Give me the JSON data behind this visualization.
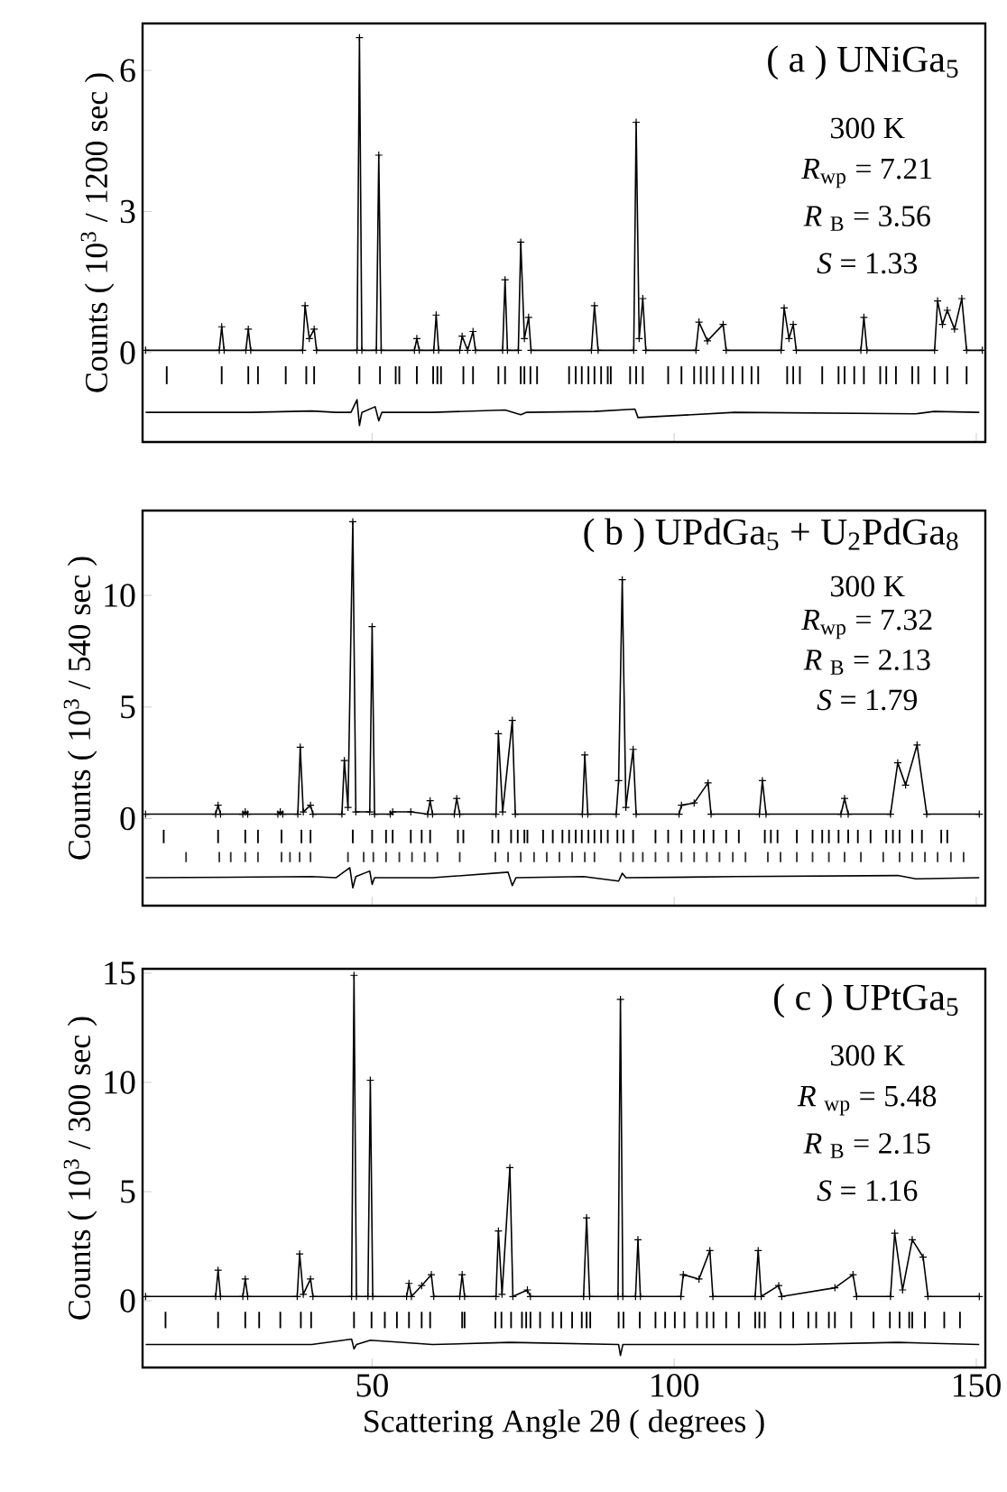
{
  "chart_data": [
    {
      "type": "line",
      "xlim": [
        12,
        151.5
      ],
      "xticks": [
        50,
        100,
        150
      ],
      "ylim": [
        -1.9,
        7
      ],
      "yticks": [
        0,
        3,
        6
      ],
      "tick_labels": "y",
      "ylabel": "Counts ( 10$^{3}$ / 1200 sec )",
      "annotations": [
        "( a )  UNiGa$_{5}$",
        "300 K",
        "*R*$_{wp}$ = 7.21",
        "*R* $_{B}$ = 3.56",
        "*S*  = 1.33"
      ],
      "series": [
        {
          "marker": "cross",
          "color": "#000000",
          "x": [
            12.5,
            24.7,
            25.1,
            25.5,
            29.1,
            29.5,
            29.9,
            38.5,
            38.9,
            39.6,
            40.4,
            40.8,
            47.5,
            47.9,
            48.3,
            50.7,
            51.1,
            51.5,
            57.0,
            57.4,
            57.8,
            60.2,
            60.6,
            61.0,
            64.5,
            64.9,
            65.8,
            66.7,
            67.1,
            71.6,
            72.0,
            72.4,
            74.2,
            74.6,
            75.2,
            75.9,
            76.3,
            86.3,
            86.8,
            87.4,
            93.3,
            93.7,
            94.2,
            94.8,
            95.3,
            103.6,
            104.1,
            105.5,
            108.1,
            108.6,
            117.7,
            118.2,
            119.0,
            119.7,
            120.2,
            130.9,
            131.4,
            131.9,
            143.1,
            143.6,
            144.4,
            145.2,
            146.4,
            147.6,
            148.4,
            151
          ],
          "values": [
            0.05,
            0.05,
            0.55,
            0.05,
            0.05,
            0.5,
            0.05,
            0.05,
            1.0,
            0.3,
            0.5,
            0.05,
            0.05,
            6.7,
            0.05,
            0.05,
            4.2,
            0.05,
            0.05,
            0.3,
            0.05,
            0.05,
            0.8,
            0.05,
            0.05,
            0.35,
            0.05,
            0.45,
            0.05,
            0.05,
            1.55,
            0.05,
            0.05,
            2.35,
            0.3,
            0.75,
            0.05,
            0.05,
            1.0,
            0.05,
            0.05,
            4.9,
            0.3,
            1.15,
            0.05,
            0.05,
            0.65,
            0.25,
            0.6,
            0.05,
            0.05,
            0.95,
            0.3,
            0.6,
            0.05,
            0.05,
            0.75,
            0.05,
            0.05,
            1.1,
            0.6,
            0.9,
            0.5,
            1.15,
            0.05,
            0.05
          ]
        },
        {
          "type": "bar",
          "color": "#000000",
          "x": [
            16.0,
            25.1,
            29.5,
            31.1,
            35.7,
            39.1,
            40.4,
            47.9,
            51.3,
            53.9,
            54.5,
            57.4,
            60.1,
            60.8,
            61.4,
            65.1,
            66.7,
            70.9,
            72.0,
            74.6,
            75.2,
            76.2,
            77.3,
            82.6,
            83.7,
            84.7,
            85.8,
            86.8,
            87.9,
            89.0,
            89.5,
            92.7,
            93.7,
            94.8,
            99.0,
            101.2,
            103.3,
            104.4,
            105.4,
            106.5,
            108.1,
            109.7,
            111.3,
            112.8,
            113.9,
            118.7,
            119.7,
            120.8,
            124.5,
            127.2,
            128.2,
            129.8,
            131.4,
            134.1,
            135.1,
            136.7,
            139.4,
            140.4,
            143.1,
            145.2,
            148.4
          ],
          "base": [
            -0.67,
            -0.67,
            -0.67,
            -0.67,
            -0.67,
            -0.67,
            -0.67,
            -0.67,
            -0.67,
            -0.67,
            -0.67,
            -0.67,
            -0.67,
            -0.67,
            -0.67,
            -0.67,
            -0.67,
            -0.67,
            -0.67,
            -0.67,
            -0.67,
            -0.67,
            -0.67,
            -0.67,
            -0.67,
            -0.67,
            -0.67,
            -0.67,
            -0.67,
            -0.67,
            -0.67,
            -0.67,
            -0.67,
            -0.67,
            -0.67,
            -0.67,
            -0.67,
            -0.67,
            -0.67,
            -0.67,
            -0.67,
            -0.67,
            -0.67,
            -0.67,
            -0.67,
            -0.67,
            -0.67,
            -0.67,
            -0.67,
            -0.67,
            -0.67,
            -0.67,
            -0.67,
            -0.67,
            -0.67,
            -0.67,
            -0.67,
            -0.67,
            -0.67,
            -0.67,
            -0.67
          ],
          "values": [
            0.38,
            0.38,
            0.38,
            0.38,
            0.38,
            0.38,
            0.38,
            0.38,
            0.38,
            0.38,
            0.38,
            0.38,
            0.38,
            0.38,
            0.38,
            0.38,
            0.38,
            0.38,
            0.38,
            0.38,
            0.38,
            0.38,
            0.38,
            0.38,
            0.38,
            0.38,
            0.38,
            0.38,
            0.38,
            0.38,
            0.38,
            0.38,
            0.38,
            0.38,
            0.38,
            0.38,
            0.38,
            0.38,
            0.38,
            0.38,
            0.38,
            0.38,
            0.38,
            0.38,
            0.38,
            0.38,
            0.38,
            0.38,
            0.38,
            0.38,
            0.38,
            0.38,
            0.38,
            0.38,
            0.38,
            0.38,
            0.38,
            0.38,
            0.38,
            0.38,
            0.38
          ]
        },
        {
          "marker": "none",
          "color": "#000000",
          "x": [
            12.5,
            30,
            40,
            44,
            46.5,
            47.5,
            47.9,
            48.3,
            50.5,
            51.1,
            51.6,
            60,
            72,
            74.6,
            75.5,
            86.8,
            93.5,
            94,
            110,
            140,
            143,
            150.5
          ],
          "values": [
            -1.27,
            -1.27,
            -1.24,
            -1.27,
            -1.27,
            -1.0,
            -1.55,
            -1.27,
            -1.15,
            -1.45,
            -1.27,
            -1.27,
            -1.22,
            -1.32,
            -1.27,
            -1.25,
            -1.2,
            -1.38,
            -1.27,
            -1.3,
            -1.25,
            -1.27
          ]
        }
      ]
    },
    {
      "type": "line",
      "xlim": [
        12,
        151.5
      ],
      "xticks": [
        50,
        100,
        150
      ],
      "ylim": [
        -3.9,
        13.8
      ],
      "yticks": [
        0,
        5,
        10
      ],
      "tick_labels": "y",
      "ylabel": "Counts  ( 10$^{3}$ / 540 sec )",
      "annotations": [
        "( b ) UPdGa$_{5}$ + U$_{2}$PdGa$_{8}$",
        "300 K",
        "*R*$_{wp}$ = 7.32",
        "*R* $_{B}$ = 2.13",
        "*S*  = 1.79"
      ],
      "series": [
        {
          "marker": "cross",
          "color": "#000000",
          "x": [
            12.5,
            24.1,
            24.5,
            24.9,
            28.6,
            29.0,
            29.4,
            34.4,
            34.8,
            35.2,
            37.7,
            38.1,
            38.6,
            39.8,
            40.2,
            45.0,
            45.4,
            46.0,
            46.8,
            47.3,
            49.6,
            50.0,
            50.4,
            53.0,
            53.4,
            56.4,
            59.2,
            59.6,
            60.0,
            63.6,
            64.0,
            64.5,
            70.5,
            70.9,
            71.6,
            73.2,
            73.7,
            84.8,
            85.2,
            85.7,
            90.4,
            90.8,
            91.4,
            92.0,
            93.2,
            93.7,
            100.8,
            101.2,
            103.3,
            105.6,
            106.1,
            114.1,
            114.6,
            115.2,
            127.6,
            128.2,
            128.8,
            135.8,
            137.0,
            138.3,
            140.2,
            141.8,
            150.5
          ],
          "values": [
            0.2,
            0.2,
            0.6,
            0.2,
            0.2,
            0.3,
            0.2,
            0.2,
            0.3,
            0.2,
            0.2,
            3.2,
            0.3,
            0.6,
            0.2,
            0.2,
            2.6,
            0.5,
            13.3,
            0.3,
            0.3,
            8.6,
            0.2,
            0.2,
            0.3,
            0.3,
            0.2,
            0.8,
            0.2,
            0.2,
            0.9,
            0.2,
            0.2,
            3.8,
            0.3,
            4.4,
            0.2,
            0.2,
            2.85,
            0.2,
            0.2,
            1.7,
            10.7,
            0.5,
            3.1,
            0.2,
            0.2,
            0.6,
            0.7,
            1.6,
            0.2,
            0.2,
            1.7,
            0.2,
            0.2,
            0.9,
            0.2,
            0.2,
            2.5,
            1.5,
            3.3,
            0.2,
            0.2
          ]
        },
        {
          "type": "bar",
          "color": "#000000",
          "x": [
            15.5,
            24.5,
            29.0,
            31.1,
            35.0,
            38.3,
            39.8,
            46.8,
            50.0,
            52.3,
            53.4,
            56.4,
            58.2,
            59.6,
            64.2,
            65.1,
            69.9,
            70.9,
            73.0,
            74.1,
            75.2,
            75.7,
            78.3,
            79.9,
            81.5,
            82.6,
            83.7,
            84.7,
            85.8,
            86.8,
            87.9,
            89.0,
            90.6,
            91.6,
            93.2,
            96.9,
            99.0,
            101.2,
            103.3,
            104.9,
            106.5,
            108.6,
            110.7,
            115.0,
            116.0,
            117.1,
            120.3,
            122.9,
            124.5,
            125.6,
            127.2,
            128.8,
            130.4,
            132.5,
            135.1,
            136.2,
            137.3,
            139.4,
            141.0,
            144.2,
            145.2
          ],
          "base": [
            -1.1,
            -1.1,
            -1.1,
            -1.1,
            -1.1,
            -1.1,
            -1.1,
            -1.1,
            -1.1,
            -1.1,
            -1.1,
            -1.1,
            -1.1,
            -1.1,
            -1.1,
            -1.1,
            -1.1,
            -1.1,
            -1.1,
            -1.1,
            -1.1,
            -1.1,
            -1.1,
            -1.1,
            -1.1,
            -1.1,
            -1.1,
            -1.1,
            -1.1,
            -1.1,
            -1.1,
            -1.1,
            -1.1,
            -1.1,
            -1.1,
            -1.1,
            -1.1,
            -1.1,
            -1.1,
            -1.1,
            -1.1,
            -1.1,
            -1.1,
            -1.1,
            -1.1,
            -1.1,
            -1.1,
            -1.1,
            -1.1,
            -1.1,
            -1.1,
            -1.1,
            -1.1,
            -1.1,
            -1.1,
            -1.1,
            -1.1,
            -1.1,
            -1.1,
            -1.1,
            -1.1
          ],
          "values": [
            0.6,
            0.6,
            0.6,
            0.6,
            0.6,
            0.6,
            0.6,
            0.6,
            0.6,
            0.6,
            0.6,
            0.6,
            0.6,
            0.6,
            0.6,
            0.6,
            0.6,
            0.6,
            0.6,
            0.6,
            0.6,
            0.6,
            0.6,
            0.6,
            0.6,
            0.6,
            0.6,
            0.6,
            0.6,
            0.6,
            0.6,
            0.6,
            0.6,
            0.6,
            0.6,
            0.6,
            0.6,
            0.6,
            0.6,
            0.6,
            0.6,
            0.6,
            0.6,
            0.6,
            0.6,
            0.6,
            0.6,
            0.6,
            0.6,
            0.6,
            0.6,
            0.6,
            0.6,
            0.6,
            0.6,
            0.6,
            0.6,
            0.6,
            0.6,
            0.6,
            0.6
          ]
        },
        {
          "type": "bar",
          "color": "#333333",
          "x": [
            19.2,
            24.7,
            26.6,
            29.0,
            31.1,
            35.0,
            36.4,
            38.0,
            39.8,
            46.0,
            48.6,
            50.2,
            52.3,
            54.5,
            56.6,
            58.7,
            60.8,
            64.5,
            70.4,
            72.5,
            74.6,
            76.8,
            78.9,
            81.0,
            83.1,
            85.2,
            86.8,
            91.1,
            93.2,
            94.8,
            96.9,
            99.0,
            101.2,
            103.3,
            105.4,
            107.5,
            109.7,
            111.8,
            115.5,
            117.6,
            120.3,
            122.9,
            125.6,
            128.2,
            130.9,
            134.6,
            137.3,
            139.4,
            141.5,
            143.6,
            145.8,
            147.9
          ],
          "base": [
            -1.95,
            -1.95,
            -1.95,
            -1.95,
            -1.95,
            -1.95,
            -1.95,
            -1.95,
            -1.95,
            -1.95,
            -1.95,
            -1.95,
            -1.95,
            -1.95,
            -1.95,
            -1.95,
            -1.95,
            -1.95,
            -1.95,
            -1.95,
            -1.95,
            -1.95,
            -1.95,
            -1.95,
            -1.95,
            -1.95,
            -1.95,
            -1.95,
            -1.95,
            -1.95,
            -1.95,
            -1.95,
            -1.95,
            -1.95,
            -1.95,
            -1.95,
            -1.95,
            -1.95,
            -1.95,
            -1.95,
            -1.95,
            -1.95,
            -1.95,
            -1.95,
            -1.95,
            -1.95,
            -1.95,
            -1.95,
            -1.95,
            -1.95,
            -1.95,
            -1.95
          ],
          "values": [
            0.45,
            0.45,
            0.45,
            0.45,
            0.45,
            0.45,
            0.45,
            0.45,
            0.45,
            0.45,
            0.45,
            0.45,
            0.45,
            0.45,
            0.45,
            0.45,
            0.45,
            0.45,
            0.45,
            0.45,
            0.45,
            0.45,
            0.45,
            0.45,
            0.45,
            0.45,
            0.45,
            0.45,
            0.45,
            0.45,
            0.45,
            0.45,
            0.45,
            0.45,
            0.45,
            0.45,
            0.45,
            0.45,
            0.45,
            0.45,
            0.45,
            0.45,
            0.45,
            0.45,
            0.45,
            0.45,
            0.45,
            0.45,
            0.45,
            0.45,
            0.45,
            0.45
          ]
        },
        {
          "marker": "none",
          "color": "#000000",
          "x": [
            12.5,
            40,
            44,
            46.3,
            46.8,
            47.3,
            49.6,
            50.0,
            50.4,
            60,
            72.5,
            73.2,
            73.8,
            85,
            90.8,
            91.4,
            92,
            110,
            137,
            140,
            150.5
          ],
          "values": [
            -2.65,
            -2.6,
            -2.65,
            -2.2,
            -3.1,
            -2.6,
            -2.35,
            -2.95,
            -2.65,
            -2.65,
            -2.4,
            -3.0,
            -2.65,
            -2.6,
            -2.8,
            -2.45,
            -2.65,
            -2.6,
            -2.55,
            -2.7,
            -2.65
          ]
        }
      ]
    },
    {
      "type": "line",
      "xlim": [
        12,
        151.5
      ],
      "xticks": [
        50,
        100,
        150
      ],
      "ylim": [
        -3.05,
        15.2
      ],
      "yticks": [
        0,
        5,
        10,
        15
      ],
      "ylabel": "Counts ( 10$^{3}$ / 300 sec )",
      "xlabel": "Scattering Angle   2θ  ( degrees )",
      "annotations": [
        "( c )  UPtGa$_{5}$",
        "300 K",
        "*R* $_{wp}$ = 5.48",
        "*R* $_{B}$  = 2.15",
        "*S*   = 1.16"
      ],
      "series": [
        {
          "marker": "cross",
          "color": "#000000",
          "x": [
            12.5,
            24.1,
            24.5,
            24.9,
            28.6,
            29.0,
            29.4,
            37.6,
            38.0,
            38.6,
            39.8,
            40.2,
            46.6,
            47.0,
            47.4,
            49.3,
            49.7,
            50.1,
            55.7,
            56.1,
            56.5,
            58.2,
            59.8,
            60.2,
            64.5,
            64.9,
            65.3,
            70.5,
            70.9,
            71.5,
            72.8,
            73.3,
            75.7,
            76.2,
            85.0,
            85.5,
            86.0,
            90.7,
            91.1,
            91.5,
            93.6,
            94.0,
            94.4,
            101.1,
            101.5,
            104.1,
            105.9,
            106.4,
            113.4,
            113.9,
            114.4,
            117.3,
            117.8,
            126.6,
            129.6,
            130.2,
            135.8,
            136.5,
            137.8,
            139.4,
            141.2,
            142.0,
            150.5
          ],
          "values": [
            0.2,
            0.2,
            1.4,
            0.2,
            0.2,
            1.0,
            0.2,
            0.2,
            2.15,
            0.3,
            1.0,
            0.2,
            0.2,
            14.9,
            0.2,
            0.2,
            10.1,
            0.2,
            0.2,
            0.8,
            0.2,
            0.7,
            1.2,
            0.2,
            0.2,
            1.2,
            0.2,
            0.2,
            3.2,
            0.3,
            6.1,
            0.2,
            0.5,
            0.2,
            0.2,
            3.8,
            0.2,
            0.2,
            13.8,
            0.2,
            0.2,
            2.8,
            0.2,
            0.2,
            1.2,
            1.0,
            2.3,
            0.2,
            0.2,
            2.3,
            0.2,
            0.7,
            0.2,
            0.6,
            1.2,
            0.2,
            0.2,
            3.1,
            0.5,
            2.8,
            2.0,
            0.2,
            0.2
          ]
        },
        {
          "type": "bar",
          "color": "#000000",
          "x": [
            15.8,
            24.5,
            29.0,
            31.3,
            34.8,
            38.2,
            39.9,
            47.0,
            49.9,
            52.1,
            54.1,
            56.1,
            58.2,
            59.6,
            64.9,
            65.3,
            70.4,
            71.4,
            73.0,
            74.8,
            75.5,
            76.2,
            77.8,
            79.9,
            81.3,
            83.1,
            84.7,
            85.5,
            86.1,
            90.8,
            91.6,
            94.3,
            96.9,
            98.5,
            100.1,
            101.7,
            103.8,
            105.4,
            106.5,
            108.6,
            110.7,
            113.4,
            114.1,
            115.0,
            117.6,
            119.7,
            122.2,
            123.5,
            125.6,
            126.6,
            129.3,
            133.0,
            135.7,
            137.3,
            138.9,
            139.4,
            141.5,
            144.7,
            147.3
          ],
          "base": [
            -1.25,
            -1.25,
            -1.25,
            -1.25,
            -1.25,
            -1.25,
            -1.25,
            -1.25,
            -1.25,
            -1.25,
            -1.25,
            -1.25,
            -1.25,
            -1.25,
            -1.25,
            -1.25,
            -1.25,
            -1.25,
            -1.25,
            -1.25,
            -1.25,
            -1.25,
            -1.25,
            -1.25,
            -1.25,
            -1.25,
            -1.25,
            -1.25,
            -1.25,
            -1.25,
            -1.25,
            -1.25,
            -1.25,
            -1.25,
            -1.25,
            -1.25,
            -1.25,
            -1.25,
            -1.25,
            -1.25,
            -1.25,
            -1.25,
            -1.25,
            -1.25,
            -1.25,
            -1.25,
            -1.25,
            -1.25,
            -1.25,
            -1.25,
            -1.25,
            -1.25,
            -1.25,
            -1.25,
            -1.25,
            -1.25,
            -1.25,
            -1.25,
            -1.25
          ],
          "values": [
            0.75,
            0.75,
            0.75,
            0.75,
            0.75,
            0.75,
            0.75,
            0.75,
            0.75,
            0.75,
            0.75,
            0.75,
            0.75,
            0.75,
            0.75,
            0.75,
            0.75,
            0.75,
            0.75,
            0.75,
            0.75,
            0.75,
            0.75,
            0.75,
            0.75,
            0.75,
            0.75,
            0.75,
            0.75,
            0.75,
            0.75,
            0.75,
            0.75,
            0.75,
            0.75,
            0.75,
            0.75,
            0.75,
            0.75,
            0.75,
            0.75,
            0.75,
            0.75,
            0.75,
            0.75,
            0.75,
            0.75,
            0.75,
            0.75,
            0.75,
            0.75,
            0.75,
            0.75,
            0.75,
            0.75,
            0.75,
            0.75,
            0.75,
            0.75
          ]
        },
        {
          "marker": "none",
          "color": "#000000",
          "x": [
            12.5,
            40,
            46.6,
            47.0,
            47.4,
            49.7,
            60,
            72.8,
            90.8,
            91.1,
            91.5,
            120,
            137,
            150.5
          ],
          "values": [
            -2.0,
            -2.0,
            -1.75,
            -2.2,
            -2.0,
            -1.8,
            -2.0,
            -1.9,
            -2.0,
            -2.5,
            -2.0,
            -2.0,
            -1.9,
            -2.0
          ]
        }
      ]
    }
  ]
}
